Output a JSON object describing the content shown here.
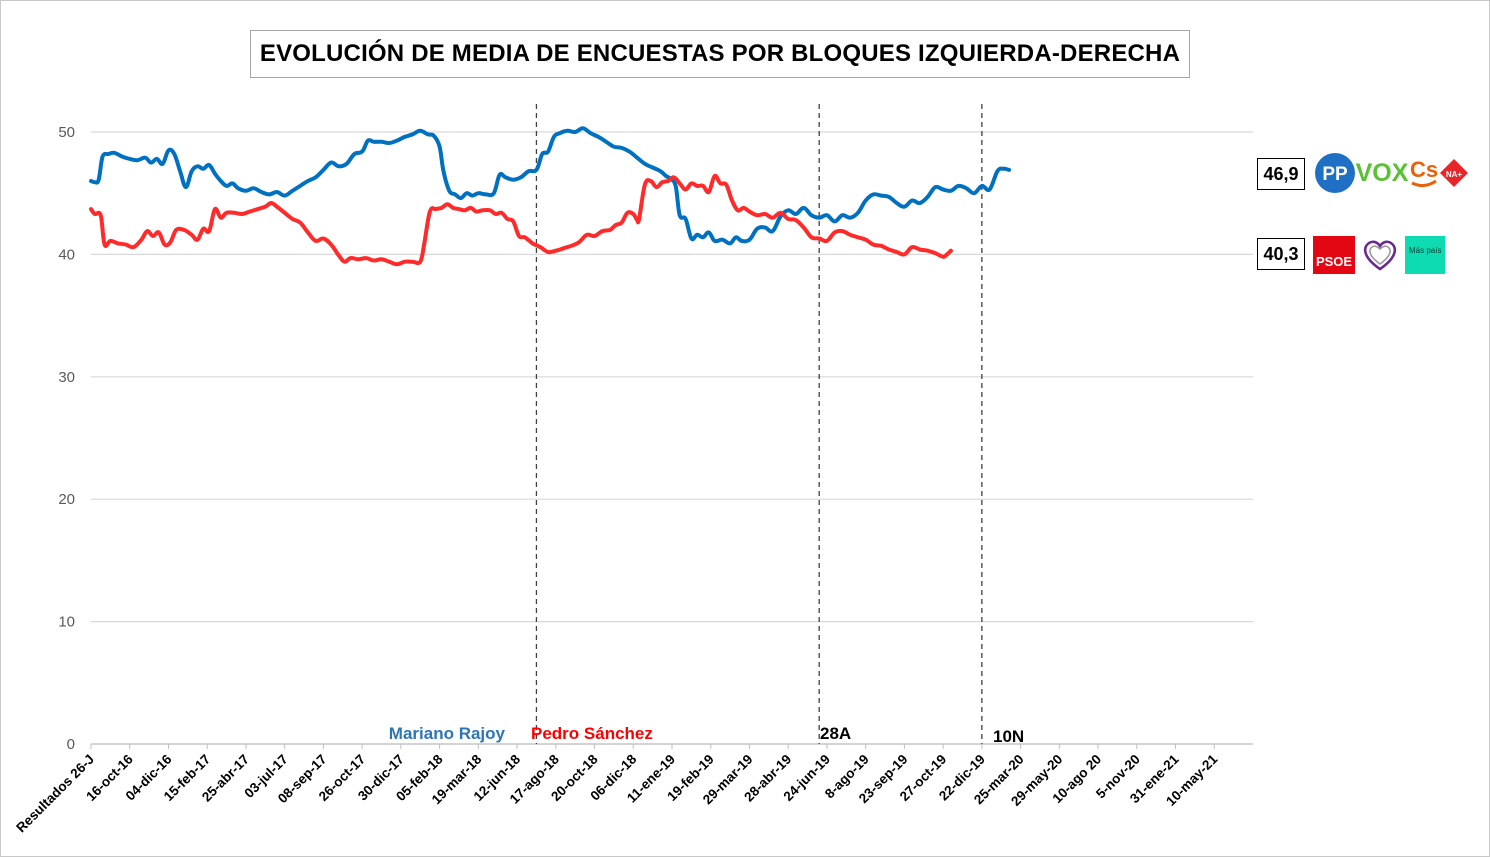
{
  "chart_data": {
    "type": "line",
    "title": "EVOLUCIÓN DE MEDIA DE ENCUESTAS POR BLOQUES IZQUIERDA-DERECHA",
    "ylim": [
      0,
      50
    ],
    "yticks": [
      0,
      10,
      20,
      30,
      40,
      50
    ],
    "grid": true,
    "categories": [
      "Resultados 26-J",
      "16-oct-16",
      "04-dic-16",
      "15-feb-17",
      "25-abr-17",
      "03-jul-17",
      "08-sep-17",
      "26-oct-17",
      "30-dic-17",
      "05-feb-18",
      "19-mar-18",
      "12-jun-18",
      "17-ago-18",
      "20-oct-18",
      "06-dic-18",
      "11-ene-19",
      "19-feb-19",
      "29-mar-19",
      "28-abr-19",
      "24-jun-19",
      "8-ago-19",
      "23-sep-19",
      "27-oct-19",
      "22-dic-19",
      "25-mar-20",
      "29-may-20",
      "10-ago 20",
      "5-nov-20",
      "31-ene-21",
      "10-may-21"
    ],
    "series": [
      {
        "color": "#0070c0",
        "values": [
          [
            0,
            46.0
          ],
          [
            0.1,
            45.9
          ],
          [
            0.2,
            46.1
          ],
          [
            0.3,
            48.0
          ],
          [
            0.45,
            48.2
          ],
          [
            0.6,
            48.3
          ],
          [
            0.8,
            48.0
          ],
          [
            1.0,
            47.8
          ],
          [
            1.2,
            47.7
          ],
          [
            1.4,
            47.9
          ],
          [
            1.55,
            47.5
          ],
          [
            1.7,
            47.8
          ],
          [
            1.85,
            47.4
          ],
          [
            2.0,
            48.5
          ],
          [
            2.15,
            48.2
          ],
          [
            2.3,
            46.8
          ],
          [
            2.45,
            45.5
          ],
          [
            2.6,
            46.8
          ],
          [
            2.75,
            47.2
          ],
          [
            2.9,
            47.0
          ],
          [
            3.05,
            47.3
          ],
          [
            3.2,
            46.6
          ],
          [
            3.35,
            46.0
          ],
          [
            3.5,
            45.6
          ],
          [
            3.65,
            45.8
          ],
          [
            3.8,
            45.4
          ],
          [
            4.0,
            45.2
          ],
          [
            4.2,
            45.4
          ],
          [
            4.4,
            45.1
          ],
          [
            4.6,
            44.9
          ],
          [
            4.8,
            45.1
          ],
          [
            5.0,
            44.8
          ],
          [
            5.2,
            45.2
          ],
          [
            5.4,
            45.6
          ],
          [
            5.6,
            46.0
          ],
          [
            5.8,
            46.3
          ],
          [
            6.0,
            46.9
          ],
          [
            6.2,
            47.5
          ],
          [
            6.4,
            47.2
          ],
          [
            6.6,
            47.4
          ],
          [
            6.8,
            48.2
          ],
          [
            7.0,
            48.4
          ],
          [
            7.15,
            49.3
          ],
          [
            7.3,
            49.2
          ],
          [
            7.5,
            49.2
          ],
          [
            7.7,
            49.1
          ],
          [
            7.9,
            49.3
          ],
          [
            8.1,
            49.6
          ],
          [
            8.3,
            49.8
          ],
          [
            8.5,
            50.1
          ],
          [
            8.7,
            49.8
          ],
          [
            8.85,
            49.7
          ],
          [
            9.0,
            48.8
          ],
          [
            9.1,
            46.8
          ],
          [
            9.25,
            45.2
          ],
          [
            9.4,
            44.9
          ],
          [
            9.55,
            44.6
          ],
          [
            9.7,
            45.0
          ],
          [
            9.85,
            44.8
          ],
          [
            10.0,
            45.0
          ],
          [
            10.2,
            44.9
          ],
          [
            10.4,
            45.0
          ],
          [
            10.55,
            46.5
          ],
          [
            10.7,
            46.3
          ],
          [
            10.9,
            46.1
          ],
          [
            11.1,
            46.3
          ],
          [
            11.3,
            46.8
          ],
          [
            11.5,
            46.9
          ],
          [
            11.65,
            48.2
          ],
          [
            11.8,
            48.4
          ],
          [
            11.95,
            49.6
          ],
          [
            12.1,
            49.9
          ],
          [
            12.3,
            50.1
          ],
          [
            12.5,
            50.0
          ],
          [
            12.7,
            50.3
          ],
          [
            12.9,
            49.9
          ],
          [
            13.1,
            49.6
          ],
          [
            13.3,
            49.2
          ],
          [
            13.5,
            48.8
          ],
          [
            13.7,
            48.7
          ],
          [
            13.9,
            48.4
          ],
          [
            14.1,
            47.9
          ],
          [
            14.3,
            47.4
          ],
          [
            14.5,
            47.1
          ],
          [
            14.7,
            46.8
          ],
          [
            14.85,
            46.4
          ],
          [
            15.0,
            46.1
          ],
          [
            15.1,
            45.5
          ],
          [
            15.2,
            43.2
          ],
          [
            15.35,
            42.9
          ],
          [
            15.5,
            41.3
          ],
          [
            15.65,
            41.6
          ],
          [
            15.8,
            41.4
          ],
          [
            15.95,
            41.8
          ],
          [
            16.1,
            41.1
          ],
          [
            16.3,
            41.2
          ],
          [
            16.5,
            40.9
          ],
          [
            16.65,
            41.4
          ],
          [
            16.8,
            41.1
          ],
          [
            17.0,
            41.2
          ],
          [
            17.2,
            42.1
          ],
          [
            17.4,
            42.2
          ],
          [
            17.6,
            41.9
          ],
          [
            17.8,
            43.1
          ],
          [
            18.0,
            43.6
          ],
          [
            18.2,
            43.3
          ],
          [
            18.4,
            43.8
          ],
          [
            18.6,
            43.2
          ],
          [
            18.8,
            43.0
          ],
          [
            19.0,
            43.2
          ],
          [
            19.2,
            42.7
          ],
          [
            19.4,
            43.2
          ],
          [
            19.6,
            43.0
          ],
          [
            19.8,
            43.4
          ],
          [
            20.0,
            44.4
          ],
          [
            20.2,
            44.9
          ],
          [
            20.4,
            44.8
          ],
          [
            20.6,
            44.7
          ],
          [
            20.8,
            44.2
          ],
          [
            21.0,
            43.9
          ],
          [
            21.2,
            44.4
          ],
          [
            21.4,
            44.2
          ],
          [
            21.6,
            44.7
          ],
          [
            21.8,
            45.5
          ],
          [
            22.0,
            45.3
          ],
          [
            22.2,
            45.2
          ],
          [
            22.4,
            45.6
          ],
          [
            22.6,
            45.4
          ],
          [
            22.8,
            45.0
          ],
          [
            23.0,
            45.6
          ],
          [
            23.2,
            45.3
          ],
          [
            23.4,
            46.8
          ],
          [
            23.55,
            47.0
          ],
          [
            23.7,
            46.9
          ]
        ]
      },
      {
        "color": "#ff2a2a",
        "values": [
          [
            0,
            43.7
          ],
          [
            0.1,
            43.3
          ],
          [
            0.25,
            43.2
          ],
          [
            0.35,
            40.8
          ],
          [
            0.5,
            41.1
          ],
          [
            0.7,
            40.9
          ],
          [
            0.9,
            40.8
          ],
          [
            1.1,
            40.6
          ],
          [
            1.3,
            41.2
          ],
          [
            1.45,
            41.9
          ],
          [
            1.6,
            41.5
          ],
          [
            1.75,
            41.8
          ],
          [
            1.9,
            40.8
          ],
          [
            2.05,
            41.0
          ],
          [
            2.2,
            42.0
          ],
          [
            2.4,
            42.0
          ],
          [
            2.6,
            41.6
          ],
          [
            2.75,
            41.2
          ],
          [
            2.9,
            42.1
          ],
          [
            3.05,
            41.9
          ],
          [
            3.2,
            43.7
          ],
          [
            3.35,
            43.0
          ],
          [
            3.5,
            43.4
          ],
          [
            3.7,
            43.4
          ],
          [
            3.9,
            43.3
          ],
          [
            4.1,
            43.5
          ],
          [
            4.3,
            43.7
          ],
          [
            4.5,
            43.9
          ],
          [
            4.65,
            44.2
          ],
          [
            4.8,
            43.9
          ],
          [
            5.0,
            43.4
          ],
          [
            5.2,
            42.9
          ],
          [
            5.4,
            42.6
          ],
          [
            5.6,
            41.8
          ],
          [
            5.8,
            41.1
          ],
          [
            6.0,
            41.3
          ],
          [
            6.2,
            40.8
          ],
          [
            6.4,
            39.9
          ],
          [
            6.55,
            39.4
          ],
          [
            6.7,
            39.7
          ],
          [
            6.9,
            39.6
          ],
          [
            7.1,
            39.7
          ],
          [
            7.3,
            39.5
          ],
          [
            7.5,
            39.6
          ],
          [
            7.7,
            39.4
          ],
          [
            7.9,
            39.2
          ],
          [
            8.1,
            39.4
          ],
          [
            8.3,
            39.4
          ],
          [
            8.5,
            39.4
          ],
          [
            8.6,
            40.8
          ],
          [
            8.75,
            43.5
          ],
          [
            8.9,
            43.7
          ],
          [
            9.05,
            43.8
          ],
          [
            9.2,
            44.1
          ],
          [
            9.35,
            43.8
          ],
          [
            9.5,
            43.7
          ],
          [
            9.65,
            43.6
          ],
          [
            9.8,
            43.8
          ],
          [
            9.95,
            43.5
          ],
          [
            10.1,
            43.6
          ],
          [
            10.3,
            43.6
          ],
          [
            10.45,
            43.3
          ],
          [
            10.6,
            43.4
          ],
          [
            10.75,
            42.9
          ],
          [
            10.9,
            42.7
          ],
          [
            11.05,
            41.5
          ],
          [
            11.2,
            41.4
          ],
          [
            11.4,
            40.9
          ],
          [
            11.6,
            40.6
          ],
          [
            11.8,
            40.2
          ],
          [
            12.0,
            40.3
          ],
          [
            12.2,
            40.5
          ],
          [
            12.4,
            40.7
          ],
          [
            12.6,
            41.0
          ],
          [
            12.8,
            41.6
          ],
          [
            13.0,
            41.5
          ],
          [
            13.2,
            41.9
          ],
          [
            13.4,
            42.0
          ],
          [
            13.55,
            42.4
          ],
          [
            13.7,
            42.6
          ],
          [
            13.85,
            43.4
          ],
          [
            14.0,
            43.3
          ],
          [
            14.1,
            42.8
          ],
          [
            14.15,
            42.9
          ],
          [
            14.3,
            45.7
          ],
          [
            14.45,
            46.0
          ],
          [
            14.6,
            45.5
          ],
          [
            14.75,
            45.9
          ],
          [
            14.9,
            46.0
          ],
          [
            15.05,
            46.3
          ],
          [
            15.2,
            45.8
          ],
          [
            15.35,
            45.3
          ],
          [
            15.5,
            45.8
          ],
          [
            15.65,
            45.6
          ],
          [
            15.8,
            45.6
          ],
          [
            15.95,
            45.1
          ],
          [
            16.1,
            46.4
          ],
          [
            16.25,
            45.8
          ],
          [
            16.4,
            45.7
          ],
          [
            16.55,
            44.4
          ],
          [
            16.7,
            43.6
          ],
          [
            16.85,
            43.8
          ],
          [
            17.0,
            43.5
          ],
          [
            17.2,
            43.2
          ],
          [
            17.4,
            43.3
          ],
          [
            17.6,
            43.0
          ],
          [
            17.8,
            43.4
          ],
          [
            18.0,
            42.9
          ],
          [
            18.2,
            42.8
          ],
          [
            18.4,
            42.2
          ],
          [
            18.6,
            41.4
          ],
          [
            18.8,
            41.3
          ],
          [
            19.0,
            41.1
          ],
          [
            19.2,
            41.8
          ],
          [
            19.4,
            41.9
          ],
          [
            19.6,
            41.6
          ],
          [
            19.8,
            41.4
          ],
          [
            20.0,
            41.2
          ],
          [
            20.2,
            40.8
          ],
          [
            20.4,
            40.7
          ],
          [
            20.6,
            40.4
          ],
          [
            20.8,
            40.2
          ],
          [
            21.0,
            40.0
          ],
          [
            21.2,
            40.6
          ],
          [
            21.4,
            40.4
          ],
          [
            21.6,
            40.3
          ],
          [
            21.8,
            40.1
          ],
          [
            22.0,
            39.8
          ],
          [
            22.1,
            40.0
          ],
          [
            22.2,
            40.3
          ]
        ]
      }
    ],
    "vertical_markers": [
      {
        "at": 11.5,
        "style": "dashed"
      },
      {
        "at": 18.8,
        "style": "dashed"
      },
      {
        "at": 23.0,
        "style": "dashed"
      }
    ],
    "annotations": [
      {
        "text": "Mariano Rajoy",
        "color": "#2e75b6"
      },
      {
        "text": "Pedro Sánchez",
        "color": "#ff0000"
      },
      {
        "text": "28A",
        "color": "#000000"
      },
      {
        "text": "10N",
        "color": "#000000"
      }
    ],
    "end_labels": [
      "46,9",
      "40,3"
    ]
  },
  "logos": {
    "right_bloc": [
      {
        "name": "pp-logo",
        "text": "PP",
        "color": "#1f6fc5"
      },
      {
        "name": "vox-logo",
        "text": "VOX",
        "color": "#5ac035"
      },
      {
        "name": "cs-logo",
        "text": "Cs",
        "color": "#eb6109"
      },
      {
        "name": "na-plus-logo",
        "text": "NA+",
        "color": "#e8262a"
      }
    ],
    "left_bloc": [
      {
        "name": "psoe-logo",
        "text": "PSOE",
        "color": "#e30613"
      },
      {
        "name": "podemos-logo",
        "text": "",
        "color": "#6b2c91"
      },
      {
        "name": "mas-pais-logo",
        "text": "Más país",
        "color": "#0fdbb3"
      }
    ]
  }
}
